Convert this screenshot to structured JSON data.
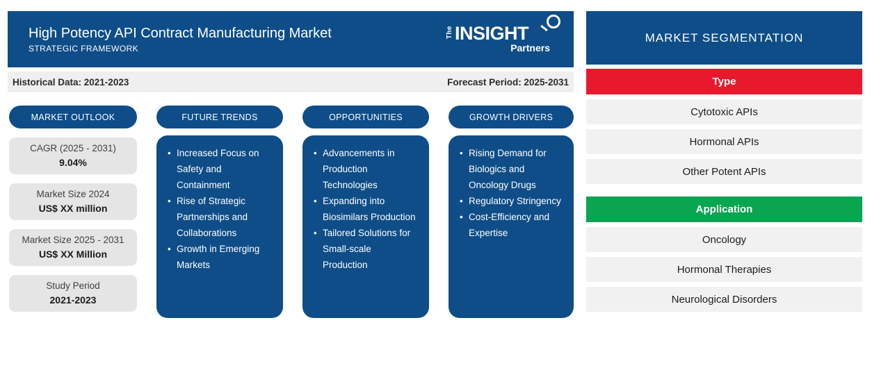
{
  "colors": {
    "header_blue": "#0E4D87",
    "period_gray": "#EFEFEF",
    "card_gray": "#E5E5E5",
    "row_gray": "#F1F1F1",
    "type_red": "#E8192C",
    "application_green": "#09A551"
  },
  "header": {
    "title": "High Potency API Contract Manufacturing Market",
    "subtitle": "STRATEGIC FRAMEWORK",
    "logo": {
      "the": "The",
      "insight": "INSIGHT",
      "partners": "Partners"
    }
  },
  "period_bar": {
    "historical": "Historical Data: 2021-2023",
    "forecast": "Forecast Period: 2025-2031"
  },
  "market_outlook": {
    "label": "MARKET OUTLOOK",
    "cards": [
      {
        "label": "CAGR (2025 - 2031)",
        "value": "9.04%"
      },
      {
        "label": "Market Size 2024",
        "value": "US$ XX million"
      },
      {
        "label": "Market Size 2025 - 2031",
        "value": "US$ XX Million"
      },
      {
        "label": "Study Period",
        "value": "2021-2023"
      }
    ]
  },
  "future_trends": {
    "label": "FUTURE TRENDS",
    "items": [
      "Increased Focus on Safety and Containment",
      "Rise of Strategic Partnerships and Collaborations",
      "Growth in Emerging Markets"
    ]
  },
  "opportunities": {
    "label": "OPPORTUNITIES",
    "items": [
      "Advancements in Production Technologies",
      "Expanding into Biosimilars Production",
      "Tailored Solutions for Small-scale Production"
    ]
  },
  "growth_drivers": {
    "label": "GROWTH DRIVERS",
    "items": [
      "Rising Demand for Biologics and Oncology Drugs",
      "Regulatory Stringency",
      "Cost-Efficiency and Expertise"
    ]
  },
  "segmentation": {
    "title": "MARKET SEGMENTATION",
    "type": {
      "label": "Type",
      "items": [
        "Cytotoxic APIs",
        "Hormonal APIs",
        "Other Potent APIs"
      ]
    },
    "application": {
      "label": "Application",
      "items": [
        "Oncology",
        "Hormonal Therapies",
        "Neurological Disorders"
      ]
    }
  }
}
